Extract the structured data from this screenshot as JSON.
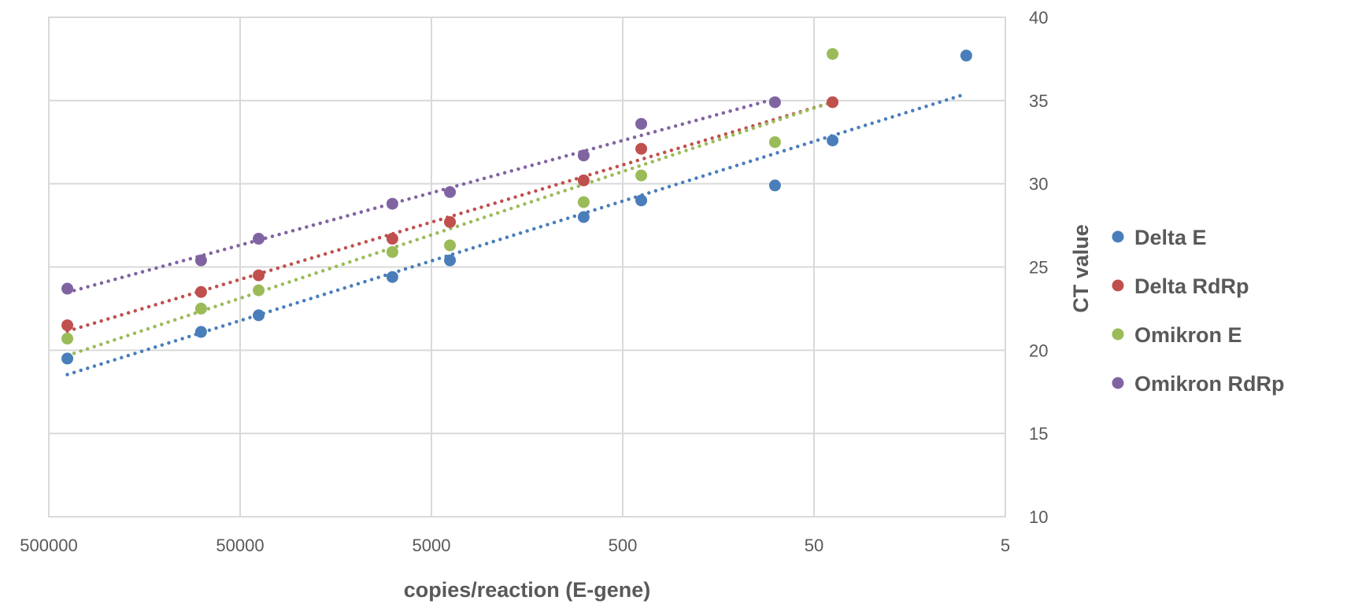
{
  "chart_data": {
    "type": "scatter",
    "title": "",
    "xlabel": "copies/reaction (E-gene)",
    "ylabel": "CT value",
    "x_scale": "log",
    "x_reversed": true,
    "xlim": [
      500000,
      5
    ],
    "ylim": [
      10,
      40
    ],
    "x_ticks": [
      500000,
      50000,
      5000,
      500,
      50,
      5
    ],
    "x_tick_labels": [
      "500000",
      "50000",
      "5000",
      "500",
      "50",
      "5"
    ],
    "y_ticks": [
      10,
      15,
      20,
      25,
      30,
      35,
      40
    ],
    "y_tick_labels": [
      "10",
      "15",
      "20",
      "25",
      "30",
      "35",
      "40"
    ],
    "y_axis_side": "right",
    "grid": true,
    "trendline": "linear (dotted)",
    "legend": "right",
    "series": [
      {
        "name": "Delta E",
        "color": "#4a7ebb",
        "points": [
          [
            400000,
            19.5
          ],
          [
            80000,
            21.1
          ],
          [
            40000,
            22.1
          ],
          [
            8000,
            24.4
          ],
          [
            4000,
            25.4
          ],
          [
            800,
            28.0
          ],
          [
            400,
            29.0
          ],
          [
            80,
            29.9
          ],
          [
            40,
            32.6
          ],
          [
            8,
            37.7
          ]
        ]
      },
      {
        "name": "Delta RdRp",
        "color": "#c0504d",
        "points": [
          [
            400000,
            21.5
          ],
          [
            80000,
            23.5
          ],
          [
            40000,
            24.5
          ],
          [
            8000,
            26.7
          ],
          [
            4000,
            27.7
          ],
          [
            800,
            30.2
          ],
          [
            400,
            32.1
          ],
          [
            40,
            34.9
          ]
        ]
      },
      {
        "name": "Omikron E",
        "color": "#9bbb59",
        "points": [
          [
            400000,
            20.7
          ],
          [
            80000,
            22.5
          ],
          [
            40000,
            23.6
          ],
          [
            8000,
            25.9
          ],
          [
            4000,
            26.3
          ],
          [
            800,
            28.9
          ],
          [
            400,
            30.5
          ],
          [
            80,
            32.5
          ],
          [
            40,
            37.8
          ]
        ]
      },
      {
        "name": "Omikron RdRp",
        "color": "#8064a2",
        "points": [
          [
            400000,
            23.7
          ],
          [
            80000,
            25.4
          ],
          [
            40000,
            26.7
          ],
          [
            8000,
            28.8
          ],
          [
            4000,
            29.5
          ],
          [
            800,
            31.7
          ],
          [
            400,
            33.6
          ],
          [
            80,
            34.9
          ]
        ]
      }
    ]
  }
}
